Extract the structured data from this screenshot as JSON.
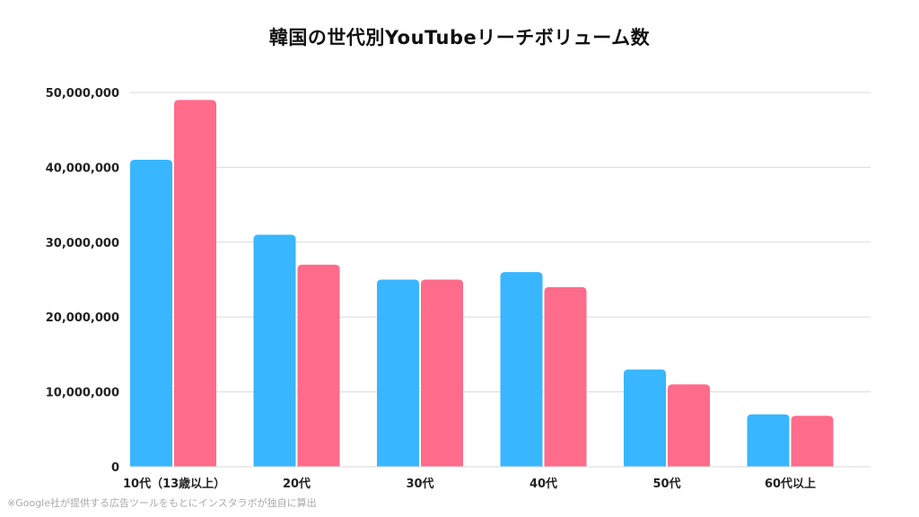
{
  "chart_data": {
    "type": "bar",
    "title": "韓国の世代別YouTubeリーチボリューム数",
    "categories": [
      "10代（13歳以上）",
      "20代",
      "30代",
      "40代",
      "50代",
      "60代以上"
    ],
    "series": [
      {
        "color": "#38b6ff",
        "values": [
          41000000,
          31000000,
          25000000,
          26000000,
          13000000,
          7000000
        ]
      },
      {
        "color": "#ff6b8b",
        "values": [
          49000000,
          27000000,
          25000000,
          24000000,
          11000000,
          6800000
        ]
      }
    ],
    "ylim": [
      0,
      50000000
    ],
    "yticks": [
      "0",
      "10,000,000",
      "20,000,000",
      "30,000,000",
      "40,000,000",
      "50,000,000"
    ],
    "grid": true
  },
  "footnote": "※Google社が提供する広告ツールをもとにインスタラボが独自に算出"
}
